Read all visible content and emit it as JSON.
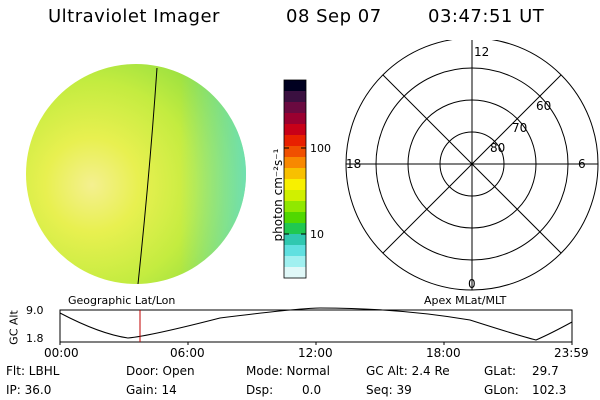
{
  "header": {
    "title": "Ultraviolet Imager",
    "date": "08 Sep 07",
    "time": "03:47:51 UT"
  },
  "colorbar": {
    "unit_label": "photon cm⁻²s⁻¹",
    "tick_100": "100",
    "tick_10": "10",
    "colors": [
      "#000020",
      "#3a1040",
      "#6a0a40",
      "#9a0030",
      "#c80018",
      "#e82000",
      "#f05000",
      "#f88800",
      "#f8c000",
      "#f8f000",
      "#d0f000",
      "#90e800",
      "#50d800",
      "#20c850",
      "#30c8b0",
      "#60e0e0",
      "#a0f0f0",
      "#e0f8f8"
    ]
  },
  "polar_plot": {
    "mlt_12": "12",
    "mlt_18": "18",
    "mlt_6": "6",
    "mlt_0": "0",
    "lat_60": "60",
    "lat_70": "70",
    "lat_80": "80"
  },
  "timeline": {
    "left_label": "Geographic Lat/Lon",
    "right_label": "Apex MLat/MLT",
    "axis_title": "GC Alt",
    "y_top": "9.0",
    "y_bottom": "1.8",
    "x_ticks": [
      "00:00",
      "06:00",
      "12:00",
      "18:00",
      "23:59"
    ]
  },
  "info": {
    "flt": "Flt: LBHL",
    "ip": "IP: 36.0",
    "door": "Door: Open",
    "gain": "Gain: 14",
    "mode": "Mode: Normal",
    "dsp": "Dsp:",
    "dsp_value": "0.0",
    "gc_alt": "GC Alt: 2.4 Re",
    "seq": "Seq: 39",
    "glat": "GLat:",
    "glat_value": "29.7",
    "glon": "GLon:",
    "glon_value": "102.3"
  },
  "colors": {
    "disk_yellow": "#e8f040",
    "disk_green": "#80e040",
    "marker_red": "#c00000"
  }
}
